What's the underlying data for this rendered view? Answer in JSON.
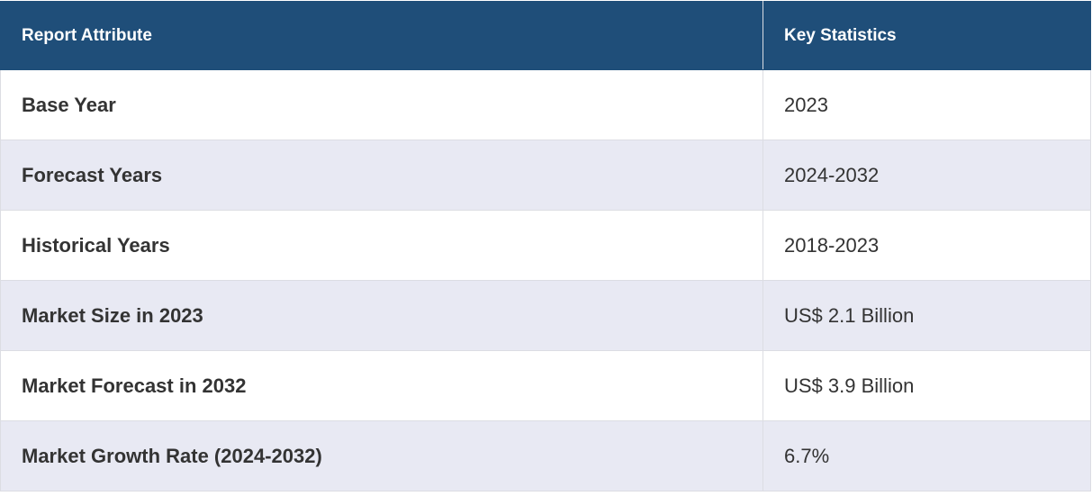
{
  "table": {
    "header": {
      "attribute": "Report Attribute",
      "statistics": "Key Statistics"
    },
    "rows": [
      {
        "attribute": "Base Year",
        "value": "2023"
      },
      {
        "attribute": "Forecast Years",
        "value": "2024-2032"
      },
      {
        "attribute": "Historical Years",
        "value": "2018-2023"
      },
      {
        "attribute": "Market Size in 2023",
        "value": "US$ 2.1 Billion"
      },
      {
        "attribute": "Market Forecast in 2032",
        "value": "US$ 3.9 Billion"
      },
      {
        "attribute": "Market Growth Rate (2024-2032)",
        "value": "6.7%"
      }
    ]
  },
  "colors": {
    "header_bg": "#1f4e79",
    "header_text": "#ffffff",
    "row_alt_bg": "#e8e9f3",
    "text": "#333333"
  }
}
